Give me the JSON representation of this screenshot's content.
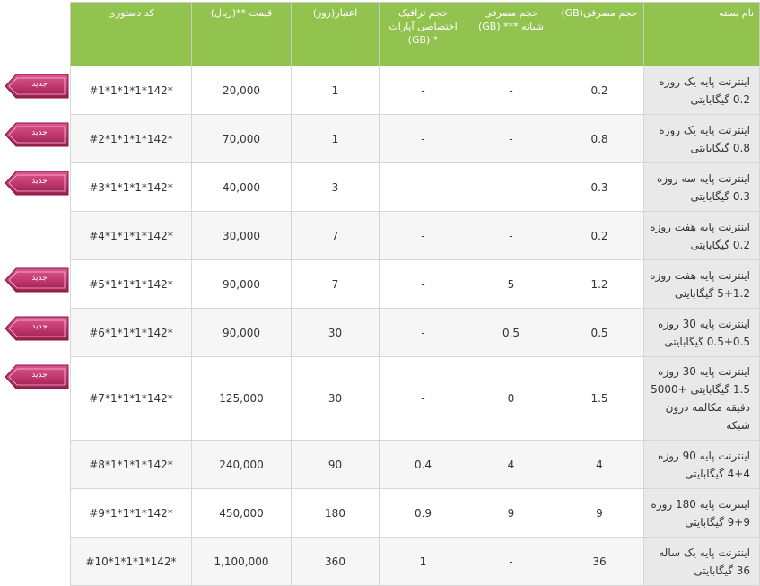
{
  "headers": {
    "code": "کد دستوری",
    "price": "قیمت **(ریال)",
    "validity": "اعتبار(روز)",
    "aparat": "حجم ترافیک اختصاصی آپارات * (GB)",
    "night": "حجم مصرفی شبانه *** (GB)",
    "usage": "حجم مصرفی(GB)",
    "name": "نام بسته"
  },
  "badge_label": "جدید",
  "colors": {
    "header_bg": "#93c34f",
    "badge": "#b0245a",
    "name_bg": "#e9e9e9"
  },
  "rows": [
    {
      "code": "#1*1*1*1*142*",
      "price": "20,000",
      "validity": "1",
      "aparat": "-",
      "night": "-",
      "usage": "0.2",
      "name": "اینترنت پایه یک روزه 0.2 گیگابایتی",
      "new": true
    },
    {
      "code": "#2*1*1*1*142*",
      "price": "70,000",
      "validity": "1",
      "aparat": "-",
      "night": "-",
      "usage": "0.8",
      "name": "اینترنت پایه یک روزه 0.8 گیگابایتی",
      "new": true
    },
    {
      "code": "#3*1*1*1*142*",
      "price": "40,000",
      "validity": "3",
      "aparat": "-",
      "night": "-",
      "usage": "0.3",
      "name": "اینترنت پایه سه روزه 0.3 گیگابایتی",
      "new": true
    },
    {
      "code": "#4*1*1*1*142*",
      "price": "30,000",
      "validity": "7",
      "aparat": "-",
      "night": "-",
      "usage": "0.2",
      "name": "اینترنت پایه هفت روزه 0.2 گیگابایتی",
      "new": false
    },
    {
      "code": "#5*1*1*1*142*",
      "price": "90,000",
      "validity": "7",
      "aparat": "-",
      "night": "5",
      "usage": "1.2",
      "name": "اینترنت پایه هفت روزه 1.2+5 گیگابایتی",
      "new": true
    },
    {
      "code": "#6*1*1*1*142*",
      "price": "90,000",
      "validity": "30",
      "aparat": "-",
      "night": "0.5",
      "usage": "0.5",
      "name": "اینترنت پایه 30 روزه 0.5+0.5 گیگابایتی",
      "new": true
    },
    {
      "code": "#7*1*1*1*142*",
      "price": "125,000",
      "validity": "30",
      "aparat": "-",
      "night": "0",
      "usage": "1.5",
      "name": "اینترنت پایه 30 روزه 1.5 گیگابایتی +5000 دقیقه مکالمه درون شبکه",
      "new": true
    },
    {
      "code": "#8*1*1*1*142*",
      "price": "240,000",
      "validity": "90",
      "aparat": "0.4",
      "night": "4",
      "usage": "4",
      "name": "اینترنت پایه 90 روزه 4+4 گیگابایتی",
      "new": false
    },
    {
      "code": "#9*1*1*1*142*",
      "price": "450,000",
      "validity": "180",
      "aparat": "0.9",
      "night": "9",
      "usage": "9",
      "name": "اینترنت پایه 180 روزه 9+9 گیگابایتی",
      "new": false
    },
    {
      "code": "#10*1*1*1*142*",
      "price": "1,100,000",
      "validity": "360",
      "aparat": "1",
      "night": "-",
      "usage": "36",
      "name": "اینترنت پایه یک ساله 36 گیگابایتی",
      "new": false
    }
  ]
}
